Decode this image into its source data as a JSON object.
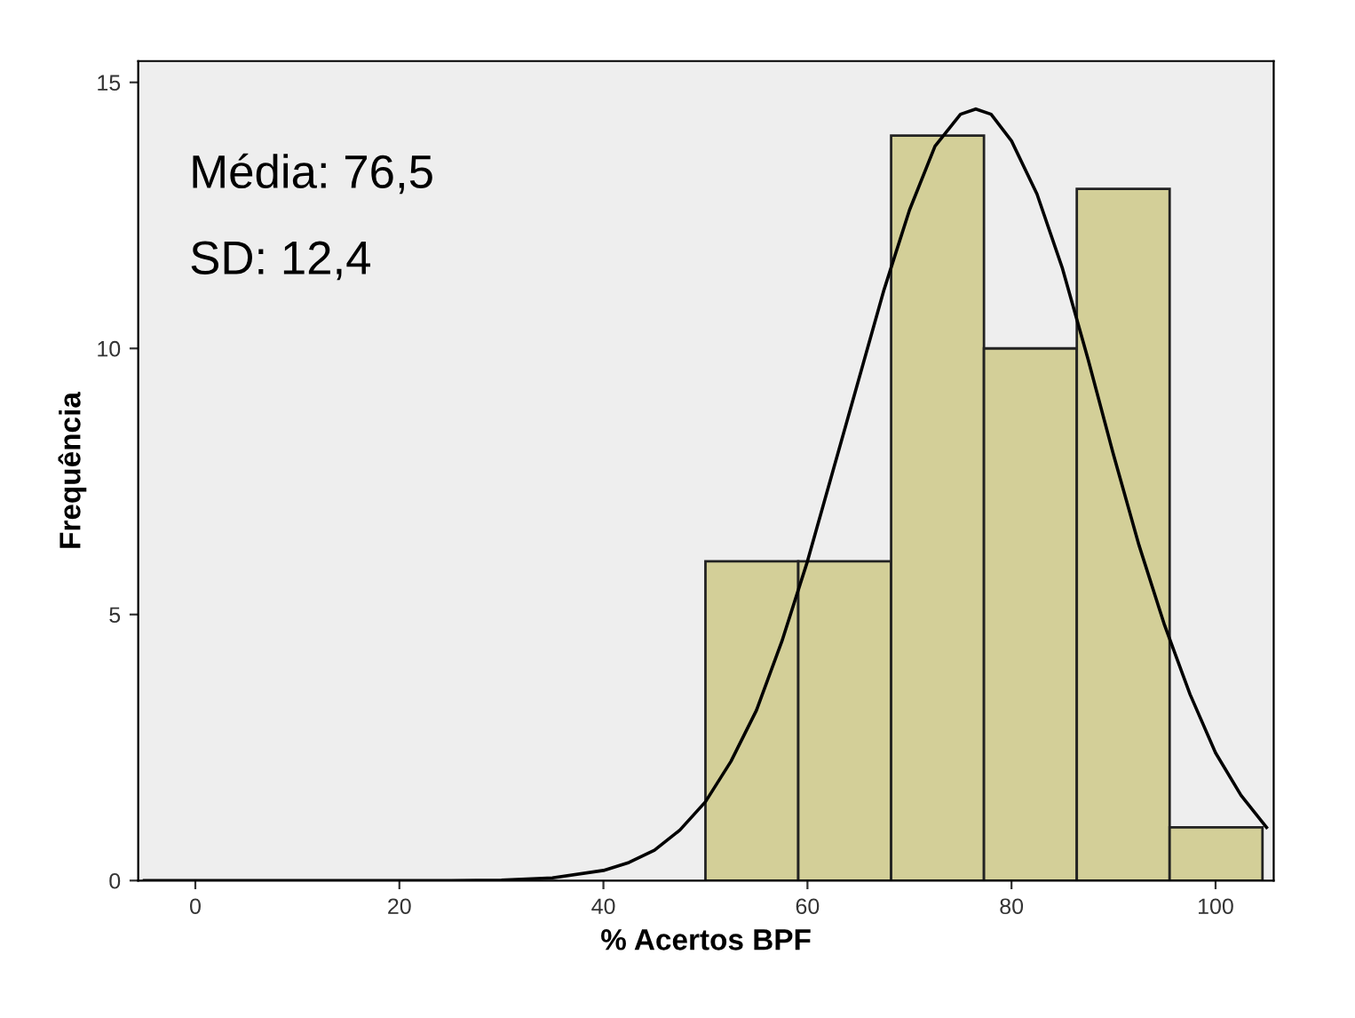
{
  "chart_data": {
    "type": "histogram",
    "xlabel": "% Acertos BPF",
    "ylabel": "Frequência",
    "annotations": [
      "Média: 76,5",
      "SD: 12,4"
    ],
    "bins": [
      50,
      59.1,
      68.2,
      77.3,
      86.4,
      95.5,
      104.6
    ],
    "series": [
      {
        "color": "#d3cf98",
        "values": [
          6,
          6,
          14,
          10,
          13,
          1
        ]
      },
      {
        "type": "line",
        "color": "#000000",
        "x": [
          -5,
          0,
          10,
          20,
          25,
          30,
          35,
          40,
          42.5,
          45,
          47.5,
          50,
          52.5,
          55,
          57.5,
          60,
          62.5,
          65,
          67.5,
          70,
          72.5,
          75,
          76.5,
          78,
          80,
          82.5,
          85,
          87.5,
          90,
          92.5,
          95,
          97.5,
          100,
          102.5,
          105
        ],
        "values": [
          0,
          0,
          0,
          0,
          0,
          0.01,
          0.05,
          0.19,
          0.34,
          0.57,
          0.95,
          1.48,
          2.24,
          3.2,
          4.5,
          6.0,
          7.7,
          9.4,
          11.1,
          12.6,
          13.8,
          14.4,
          14.5,
          14.4,
          13.9,
          12.9,
          11.5,
          9.8,
          8.0,
          6.3,
          4.8,
          3.5,
          2.4,
          1.6,
          1.0
        ]
      }
    ],
    "xlim": [
      -5.6,
      105.7
    ],
    "ylim": [
      0,
      15.4
    ],
    "xticks": [
      0,
      20,
      40,
      60,
      80,
      100
    ],
    "yticks": [
      0,
      5,
      10,
      15
    ],
    "grid": false,
    "legend": false
  }
}
